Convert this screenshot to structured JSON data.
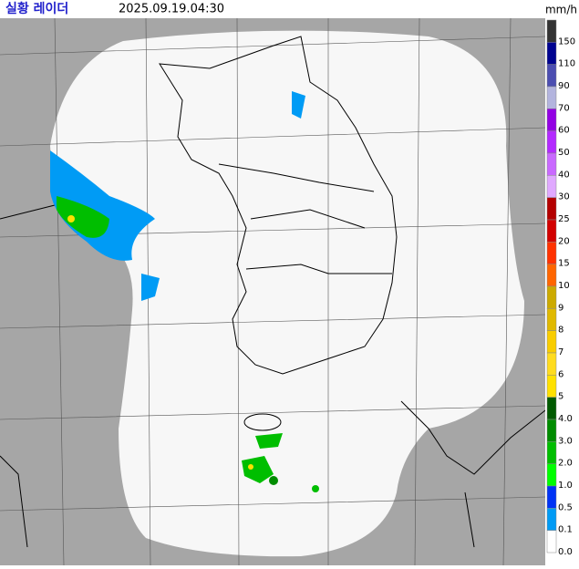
{
  "header": {
    "title": "실황 레이더",
    "timestamp": "2025.09.19.04:30",
    "unit": "mm/h"
  },
  "legend": {
    "items": [
      {
        "label": "150",
        "color": "#333333"
      },
      {
        "label": "110",
        "color": "#000390"
      },
      {
        "label": "90",
        "color": "#4c4eb1"
      },
      {
        "label": "70",
        "color": "#b3b4de"
      },
      {
        "label": "60",
        "color": "#9300e4"
      },
      {
        "label": "50",
        "color": "#b329ff"
      },
      {
        "label": "40",
        "color": "#c969ff"
      },
      {
        "label": "30",
        "color": "#e0a9ff"
      },
      {
        "label": "25",
        "color": "#b40000"
      },
      {
        "label": "20",
        "color": "#d20000"
      },
      {
        "label": "15",
        "color": "#ff3200"
      },
      {
        "label": "10",
        "color": "#ff6600"
      },
      {
        "label": "9",
        "color": "#ccaa00"
      },
      {
        "label": "8",
        "color": "#e0b900"
      },
      {
        "label": "7",
        "color": "#f9cd00"
      },
      {
        "label": "6",
        "color": "#ffdc1f"
      },
      {
        "label": "5",
        "color": "#ffe100"
      },
      {
        "label": "4.0",
        "color": "#005a00"
      },
      {
        "label": "3.0",
        "color": "#008c00"
      },
      {
        "label": "2.0",
        "color": "#00be00"
      },
      {
        "label": "1.0",
        "color": "#00ff00"
      },
      {
        "label": "0.5",
        "color": "#0033f5"
      },
      {
        "label": "0.1",
        "color": "#009bf5"
      },
      {
        "label": "0.0",
        "color": "#ffffff"
      }
    ]
  }
}
